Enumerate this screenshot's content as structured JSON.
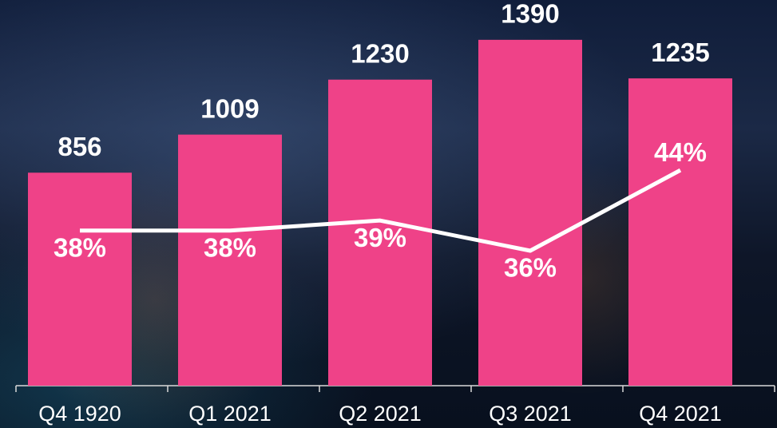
{
  "chart_data": {
    "type": "bar",
    "categories": [
      "Q4 1920",
      "Q1 2021",
      "Q2 2021",
      "Q3 2021",
      "Q4 2021"
    ],
    "series": [
      {
        "type": "bar",
        "color": "#ef4288",
        "values": [
          856,
          1009,
          1230,
          1390,
          1235
        ]
      },
      {
        "type": "line",
        "axis": "y2",
        "color": "#ffffff",
        "values": [
          38,
          38,
          39,
          36,
          44
        ],
        "value_labels": [
          "38%",
          "38%",
          "39%",
          "36%",
          "44%"
        ]
      }
    ],
    "ylim": [
      0,
      1550
    ],
    "y2lim": [
      22.6,
      60.9
    ]
  }
}
